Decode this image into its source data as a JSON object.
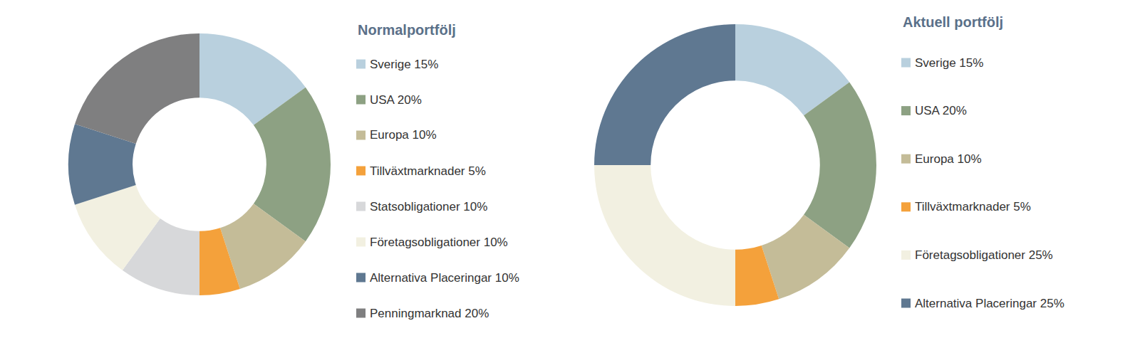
{
  "chart_data": [
    {
      "type": "pie",
      "title": "Normalportfölj",
      "categories": [
        "Sverige 15%",
        "USA 20%",
        "Europa 10%",
        "Tillväxtmarknader 5%",
        "Statsobligationer 10%",
        "Företagsobligationer 10%",
        "Alternativa Placeringar 10%",
        "Penningmarknad 20%"
      ],
      "values": [
        15,
        20,
        10,
        5,
        10,
        10,
        10,
        20
      ],
      "colors": [
        "#b9d0de",
        "#8da183",
        "#c4bc98",
        "#f4a13b",
        "#d7d8da",
        "#f2f0e1",
        "#5f7891",
        "#7f7f80"
      ]
    },
    {
      "type": "pie",
      "title": "Aktuell portfölj",
      "categories": [
        "Sverige 15%",
        "USA 20%",
        "Europa 10%",
        "Tillväxtmarknader 5%",
        "Företagsobligationer 25%",
        "Alternativa Placeringar 25%"
      ],
      "values": [
        15,
        20,
        10,
        5,
        25,
        25
      ],
      "colors": [
        "#b9d0de",
        "#8da183",
        "#c4bc98",
        "#f4a13b",
        "#f2f0e1",
        "#5f7891"
      ]
    }
  ]
}
